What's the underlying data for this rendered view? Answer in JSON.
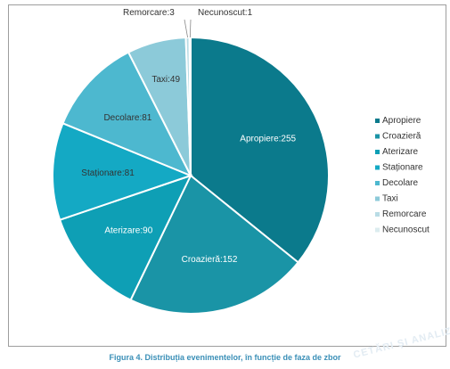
{
  "chart_data": {
    "type": "pie",
    "title": "",
    "categories": [
      "Apropiere",
      "Croazieră",
      "Aterizare",
      "Staționare",
      "Decolare",
      "Taxi",
      "Remorcare",
      "Necunoscut"
    ],
    "values": [
      255,
      152,
      90,
      81,
      81,
      49,
      3,
      1
    ],
    "slice_labels": [
      "Apropiere:255",
      "Croazieră:152",
      "Aterizare:90",
      "Staționare:81",
      "Decolare:81",
      "Taxi:49",
      "Remorcare:3",
      "Necunoscut:1"
    ],
    "colors": [
      "#0b7a8c",
      "#1a94a6",
      "#0e9fb5",
      "#14a9c4",
      "#4db8cf",
      "#8ccad9",
      "#b9dce5",
      "#dcecef"
    ],
    "label_colors": [
      "#ffffff",
      "#ffffff",
      "#ffffff",
      "#333333",
      "#333333",
      "#333333",
      "#333333",
      "#333333"
    ],
    "legend_placement": "right"
  },
  "caption": "Figura 4. Distribuția evenimentelor, în funcție de faza de zbor",
  "watermark": "CETĂRI ŞI ANALIZĂ"
}
